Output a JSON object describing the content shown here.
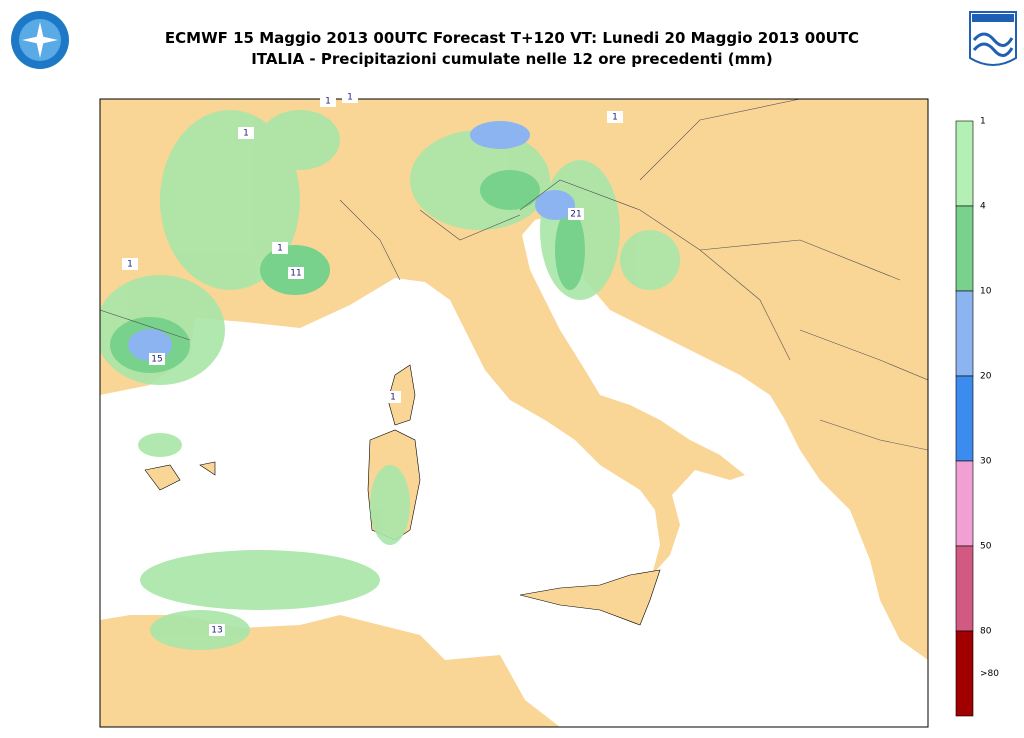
{
  "header": {
    "title": "ECMWF 15 Maggio 2013 00UTC Forecast T+120 VT: Lunedi 20 Maggio 2013 00UTC",
    "subtitle": "ITALIA - Precipitazioni cumulate nelle 12 ore precedenti (mm)"
  },
  "map": {
    "contour_labels": [
      "1",
      "1",
      "1",
      "1",
      "1",
      "1",
      "1",
      "11",
      "15",
      "21",
      "13"
    ]
  },
  "legend": {
    "colors": [
      "#b4f0b4",
      "#78d28c",
      "#8cb4f0",
      "#3c8cf0",
      "#f0a0d2",
      "#d25a82",
      "#a00000"
    ],
    "labels": [
      "1",
      "4",
      "10",
      "20",
      "30",
      "50",
      "80",
      ">80"
    ]
  }
}
